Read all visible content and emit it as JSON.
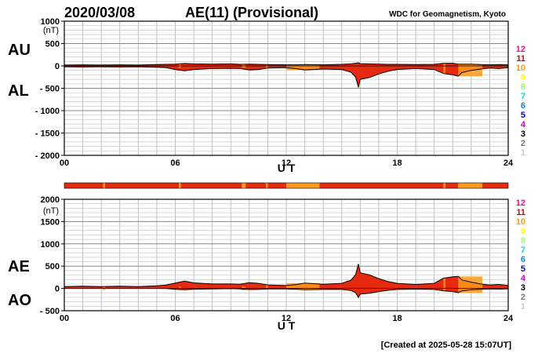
{
  "header": {
    "date": "2020/03/08",
    "title": "AE(11) (Provisional)",
    "source": "WDC for Geomagnetism, Kyoto"
  },
  "footer": {
    "created": "[Created at 2025-05-28 15:07UT]"
  },
  "legend": {
    "labels": [
      "12",
      "11",
      "10",
      "9",
      "8",
      "7",
      "6",
      "5",
      "4",
      "3",
      "2",
      "1"
    ],
    "colors": [
      "#ff00a0",
      "#e00000",
      "#ff9900",
      "#ffff00",
      "#99ff66",
      "#00ddcc",
      "#0088ff",
      "#0000cc",
      "#cc00cc",
      "#000000",
      "#777777",
      "#cccccc"
    ]
  },
  "station_bar": {
    "segments": [
      {
        "from": 0.0,
        "to": 2.1,
        "count": 11
      },
      {
        "from": 2.1,
        "to": 2.2,
        "count": 10
      },
      {
        "from": 2.2,
        "to": 6.2,
        "count": 11
      },
      {
        "from": 6.2,
        "to": 6.3,
        "count": 10
      },
      {
        "from": 6.3,
        "to": 9.6,
        "count": 11
      },
      {
        "from": 9.6,
        "to": 9.8,
        "count": 10
      },
      {
        "from": 9.8,
        "to": 10.9,
        "count": 11
      },
      {
        "from": 10.9,
        "to": 11.0,
        "count": 10
      },
      {
        "from": 11.0,
        "to": 12.0,
        "count": 11
      },
      {
        "from": 12.0,
        "to": 13.8,
        "count": 10
      },
      {
        "from": 13.8,
        "to": 20.5,
        "count": 11
      },
      {
        "from": 20.5,
        "to": 20.6,
        "count": 10
      },
      {
        "from": 20.6,
        "to": 21.3,
        "count": 11
      },
      {
        "from": 21.3,
        "to": 22.6,
        "count": 10
      },
      {
        "from": 22.6,
        "to": 24.0,
        "count": 11
      }
    ]
  },
  "chart_data": [
    {
      "type": "area",
      "title": "AU / AL",
      "ylabel": "(nT)",
      "series_labels": [
        "AU",
        "AL"
      ],
      "xlabel": "U T",
      "xticks": [
        "00",
        "06",
        "12",
        "18",
        "24"
      ],
      "xlim": [
        0,
        24
      ],
      "ylim": [
        -2000,
        1000
      ],
      "yticks": [
        "1000",
        "500",
        "0",
        "- 500",
        "- 1000",
        "- 1500",
        "- 2000"
      ],
      "grid": true,
      "x": [
        0,
        1,
        2,
        3,
        4,
        5,
        5.5,
        6,
        6.5,
        7,
        8,
        9,
        9.5,
        10,
        10.5,
        11,
        12,
        12.5,
        13,
        14,
        15,
        15.5,
        15.75,
        15.9,
        16,
        16.5,
        17,
        17.5,
        18,
        19,
        20,
        20.5,
        21,
        21.3,
        21.5,
        22,
        22.5,
        23,
        23.5,
        24
      ],
      "series": [
        {
          "name": "AU",
          "values": [
            20,
            25,
            20,
            25,
            20,
            30,
            35,
            40,
            55,
            45,
            40,
            45,
            35,
            40,
            35,
            30,
            25,
            25,
            30,
            25,
            35,
            45,
            60,
            70,
            50,
            45,
            40,
            35,
            35,
            30,
            35,
            60,
            60,
            40,
            40,
            40,
            30,
            25,
            30,
            25
          ]
        },
        {
          "name": "AL",
          "values": [
            -20,
            -25,
            -20,
            -25,
            -20,
            -30,
            -40,
            -80,
            -110,
            -80,
            -60,
            -55,
            -60,
            -90,
            -80,
            -50,
            -40,
            -60,
            -90,
            -70,
            -80,
            -140,
            -250,
            -480,
            -300,
            -260,
            -180,
            -120,
            -80,
            -60,
            -80,
            -170,
            -200,
            -230,
            -150,
            -100,
            -70,
            -50,
            -60,
            -40
          ]
        }
      ]
    },
    {
      "type": "area",
      "title": "AE / AO",
      "ylabel": "(nT)",
      "series_labels": [
        "AE",
        "AO"
      ],
      "xlabel": "U T",
      "xticks": [
        "00",
        "06",
        "12",
        "18",
        "24"
      ],
      "xlim": [
        0,
        24
      ],
      "ylim": [
        -500,
        2000
      ],
      "yticks": [
        "2000",
        "1500",
        "1000",
        "500",
        "0",
        "- 500"
      ],
      "grid": true,
      "x": [
        0,
        1,
        2,
        3,
        4,
        5,
        5.5,
        6,
        6.5,
        7,
        8,
        9,
        9.5,
        10,
        10.5,
        11,
        12,
        12.5,
        13,
        14,
        15,
        15.5,
        15.75,
        15.9,
        16,
        16.5,
        17,
        17.5,
        18,
        19,
        20,
        20.5,
        21,
        21.3,
        21.5,
        22,
        22.5,
        23,
        23.5,
        24
      ],
      "series": [
        {
          "name": "AE",
          "values": [
            40,
            50,
            40,
            50,
            40,
            60,
            75,
            120,
            165,
            125,
            100,
            100,
            95,
            130,
            115,
            80,
            65,
            85,
            120,
            95,
            115,
            185,
            310,
            550,
            350,
            305,
            220,
            155,
            115,
            90,
            115,
            230,
            260,
            270,
            190,
            140,
            100,
            75,
            90,
            65
          ]
        },
        {
          "name": "AO",
          "values": [
            0,
            0,
            0,
            0,
            0,
            0,
            -3,
            -20,
            -28,
            -18,
            -10,
            -5,
            -13,
            -25,
            -23,
            -10,
            -8,
            -18,
            -30,
            -23,
            -23,
            -48,
            -95,
            -205,
            -125,
            -108,
            -70,
            -43,
            -23,
            -15,
            -23,
            -55,
            -70,
            -95,
            -55,
            -30,
            -20,
            -13,
            -15,
            -8
          ]
        }
      ]
    }
  ]
}
